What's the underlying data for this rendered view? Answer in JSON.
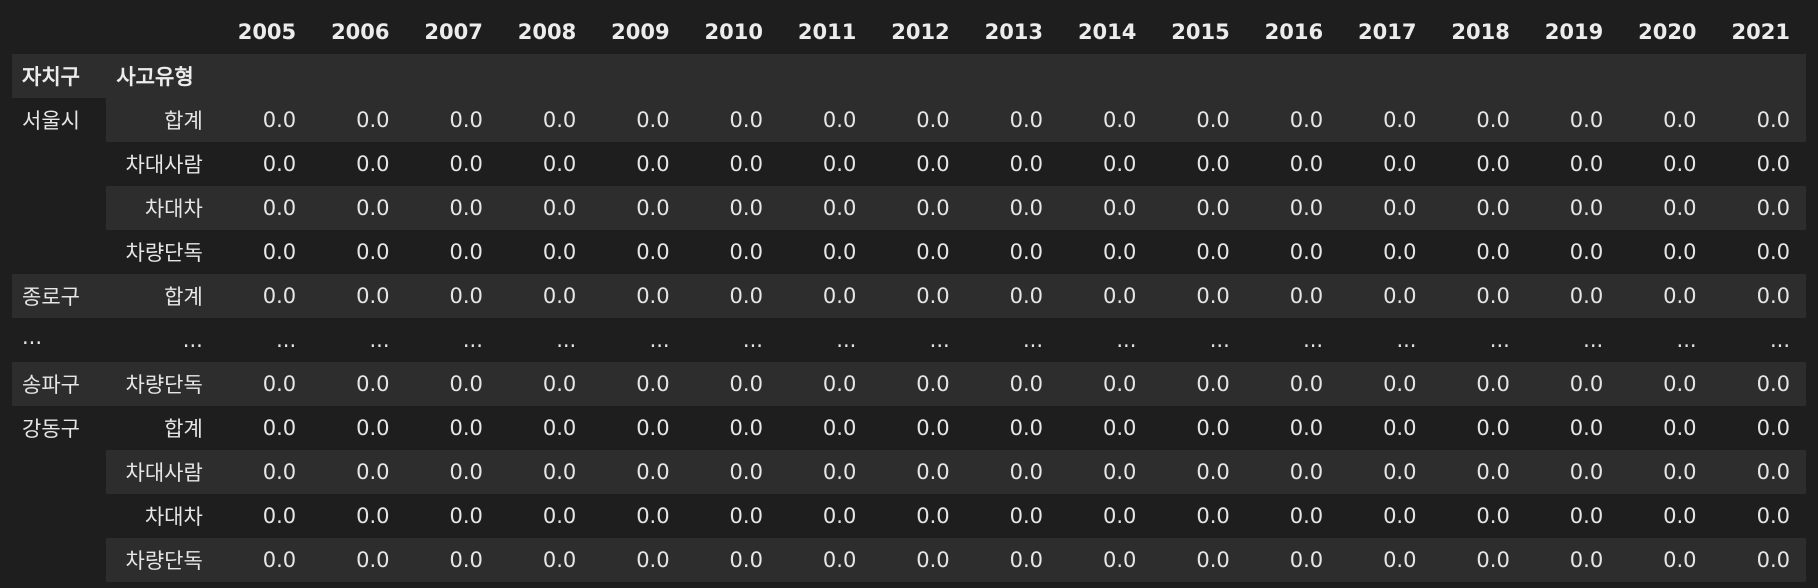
{
  "table": {
    "index_names": [
      "자치구",
      "사고유형"
    ],
    "years": [
      "2005",
      "2006",
      "2007",
      "2008",
      "2009",
      "2010",
      "2011",
      "2012",
      "2013",
      "2014",
      "2015",
      "2016",
      "2017",
      "2018",
      "2019",
      "2020",
      "2021"
    ],
    "rows": [
      {
        "gu": "서울시",
        "type": "합계",
        "values": [
          "0.0",
          "0.0",
          "0.0",
          "0.0",
          "0.0",
          "0.0",
          "0.0",
          "0.0",
          "0.0",
          "0.0",
          "0.0",
          "0.0",
          "0.0",
          "0.0",
          "0.0",
          "0.0",
          "0.0"
        ]
      },
      {
        "gu": "",
        "type": "차대사람",
        "values": [
          "0.0",
          "0.0",
          "0.0",
          "0.0",
          "0.0",
          "0.0",
          "0.0",
          "0.0",
          "0.0",
          "0.0",
          "0.0",
          "0.0",
          "0.0",
          "0.0",
          "0.0",
          "0.0",
          "0.0"
        ]
      },
      {
        "gu": "",
        "type": "차대차",
        "values": [
          "0.0",
          "0.0",
          "0.0",
          "0.0",
          "0.0",
          "0.0",
          "0.0",
          "0.0",
          "0.0",
          "0.0",
          "0.0",
          "0.0",
          "0.0",
          "0.0",
          "0.0",
          "0.0",
          "0.0"
        ]
      },
      {
        "gu": "",
        "type": "차량단독",
        "values": [
          "0.0",
          "0.0",
          "0.0",
          "0.0",
          "0.0",
          "0.0",
          "0.0",
          "0.0",
          "0.0",
          "0.0",
          "0.0",
          "0.0",
          "0.0",
          "0.0",
          "0.0",
          "0.0",
          "0.0"
        ]
      },
      {
        "gu": "종로구",
        "type": "합계",
        "values": [
          "0.0",
          "0.0",
          "0.0",
          "0.0",
          "0.0",
          "0.0",
          "0.0",
          "0.0",
          "0.0",
          "0.0",
          "0.0",
          "0.0",
          "0.0",
          "0.0",
          "0.0",
          "0.0",
          "0.0"
        ]
      },
      {
        "gu": "...",
        "type": "...",
        "values": [
          "...",
          "...",
          "...",
          "...",
          "...",
          "...",
          "...",
          "...",
          "...",
          "...",
          "...",
          "...",
          "...",
          "...",
          "...",
          "...",
          "..."
        ]
      },
      {
        "gu": "송파구",
        "type": "차량단독",
        "values": [
          "0.0",
          "0.0",
          "0.0",
          "0.0",
          "0.0",
          "0.0",
          "0.0",
          "0.0",
          "0.0",
          "0.0",
          "0.0",
          "0.0",
          "0.0",
          "0.0",
          "0.0",
          "0.0",
          "0.0"
        ]
      },
      {
        "gu": "강동구",
        "type": "합계",
        "values": [
          "0.0",
          "0.0",
          "0.0",
          "0.0",
          "0.0",
          "0.0",
          "0.0",
          "0.0",
          "0.0",
          "0.0",
          "0.0",
          "0.0",
          "0.0",
          "0.0",
          "0.0",
          "0.0",
          "0.0"
        ]
      },
      {
        "gu": "",
        "type": "차대사람",
        "values": [
          "0.0",
          "0.0",
          "0.0",
          "0.0",
          "0.0",
          "0.0",
          "0.0",
          "0.0",
          "0.0",
          "0.0",
          "0.0",
          "0.0",
          "0.0",
          "0.0",
          "0.0",
          "0.0",
          "0.0"
        ]
      },
      {
        "gu": "",
        "type": "차대차",
        "values": [
          "0.0",
          "0.0",
          "0.0",
          "0.0",
          "0.0",
          "0.0",
          "0.0",
          "0.0",
          "0.0",
          "0.0",
          "0.0",
          "0.0",
          "0.0",
          "0.0",
          "0.0",
          "0.0",
          "0.0"
        ]
      },
      {
        "gu": "",
        "type": "차량단독",
        "values": [
          "0.0",
          "0.0",
          "0.0",
          "0.0",
          "0.0",
          "0.0",
          "0.0",
          "0.0",
          "0.0",
          "0.0",
          "0.0",
          "0.0",
          "0.0",
          "0.0",
          "0.0",
          "0.0",
          "0.0"
        ]
      }
    ]
  }
}
